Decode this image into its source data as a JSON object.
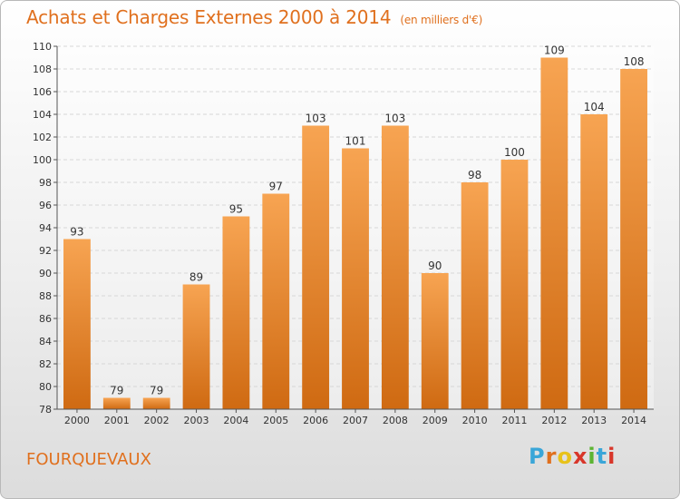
{
  "header": {
    "title": "Achats et Charges Externes 2000 à 2014",
    "subtitle": "(en milliers d'€)"
  },
  "footer": {
    "commune": "FOURQUEVAUX",
    "logo_letters": [
      "P",
      "r",
      "o",
      "x",
      "i",
      "t",
      "i"
    ]
  },
  "colors": {
    "accent": "#e0701e",
    "bar_top": "#f7a452",
    "bar_bottom": "#cf6a12",
    "logo": [
      "#3aa6d8",
      "#e0701e",
      "#e8c21a",
      "#d8362a",
      "#5cb432",
      "#3aa6d8",
      "#d8362a"
    ]
  },
  "chart_data": {
    "type": "bar",
    "title": "Achats et Charges Externes 2000 à 2014",
    "subtitle": "(en milliers d'€)",
    "categories": [
      "2000",
      "2001",
      "2002",
      "2003",
      "2004",
      "2005",
      "2006",
      "2007",
      "2008",
      "2009",
      "2010",
      "2011",
      "2012",
      "2013",
      "2014"
    ],
    "values": [
      93,
      79,
      79,
      89,
      95,
      97,
      103,
      101,
      103,
      90,
      98,
      100,
      109,
      104,
      108
    ],
    "ylim": [
      78,
      110
    ],
    "yticks": [
      78,
      80,
      82,
      84,
      86,
      88,
      90,
      92,
      94,
      96,
      98,
      100,
      102,
      104,
      106,
      108,
      110
    ],
    "grid": true,
    "xlabel": "",
    "ylabel": ""
  }
}
